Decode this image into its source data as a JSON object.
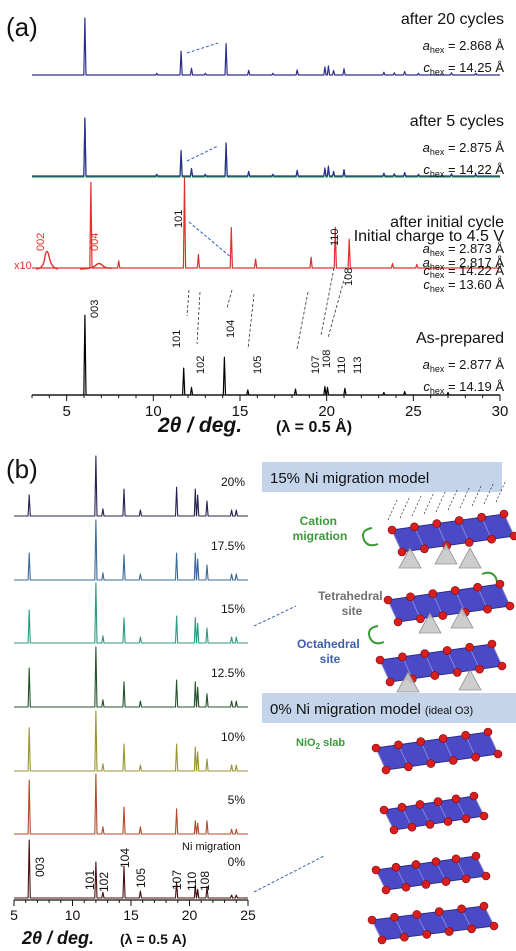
{
  "figure": {
    "panel_a_label": "(a)",
    "panel_b_label": "(b)"
  },
  "colors": {
    "navy": "#2e2e8c",
    "green": "#26a04a",
    "red": "#e0302c",
    "black": "#000000",
    "dark_red": "#4a0f12",
    "slab_blue": "#4a4ac6",
    "atom_red": "#d81e1e",
    "tetra_grey": "#c8c8c8",
    "model_box": "#c4d4ea",
    "accent_green": "#3a9a3a",
    "accent_grey": "#707070",
    "accent_blue": "#3d5fb0"
  },
  "chart_data": [
    {
      "type": "line",
      "panel": "(a)",
      "xlabel": "2θ / deg.",
      "wavelength_note": "(λ = 0.5 Å)",
      "xlim": [
        3,
        30
      ],
      "xticks": [
        5,
        10,
        15,
        20,
        25,
        30
      ],
      "series": [
        {
          "name": "after 20 cycles",
          "color": "#2e2e8c",
          "peaks": [
            [
              6.05,
              1.0
            ],
            [
              10.2,
              0.03
            ],
            [
              11.6,
              0.42
            ],
            [
              12.2,
              0.12
            ],
            [
              13.0,
              0.03
            ],
            [
              14.2,
              0.55
            ],
            [
              15.5,
              0.08
            ],
            [
              16.9,
              0.03
            ],
            [
              18.3,
              0.09
            ],
            [
              19.9,
              0.14
            ],
            [
              20.1,
              0.16
            ],
            [
              20.4,
              0.08
            ],
            [
              21.0,
              0.11
            ],
            [
              23.3,
              0.05
            ],
            [
              23.9,
              0.04
            ],
            [
              24.5,
              0.06
            ],
            [
              25.3,
              0.03
            ],
            [
              27.2,
              0.04
            ],
            [
              28.6,
              0.03
            ]
          ],
          "labels": {
            "a": "a",
            "a_sub": "hex",
            "a_value": " = 2.868 Å",
            "c": "c",
            "c_sub": "hex",
            "c_value": " = 14.25 Å"
          }
        },
        {
          "name": "after 5 cycles",
          "color": "#26a04a",
          "peaks": [
            [
              6.05,
              1.0
            ],
            [
              10.2,
              0.03
            ],
            [
              11.6,
              0.42
            ],
            [
              12.2,
              0.13
            ],
            [
              13.0,
              0.03
            ],
            [
              14.2,
              0.56
            ],
            [
              15.5,
              0.08
            ],
            [
              16.9,
              0.03
            ],
            [
              18.3,
              0.1
            ],
            [
              19.9,
              0.14
            ],
            [
              20.1,
              0.17
            ],
            [
              20.4,
              0.08
            ],
            [
              21.0,
              0.11
            ],
            [
              23.3,
              0.05
            ],
            [
              23.9,
              0.04
            ],
            [
              24.5,
              0.06
            ],
            [
              25.3,
              0.03
            ],
            [
              27.2,
              0.04
            ],
            [
              28.6,
              0.03
            ]
          ],
          "labels": {
            "a": "a",
            "a_sub": "hex",
            "a_value": " = 2.875 Å",
            "c": "c",
            "c_sub": "hex",
            "c_value": " = 14.22 Å"
          }
        },
        {
          "name": "after initial cycle",
          "color": "#2e2e8c",
          "peaks": [
            [
              6.05,
              1.0
            ],
            [
              10.2,
              0.03
            ],
            [
              11.6,
              0.44
            ],
            [
              12.2,
              0.13
            ],
            [
              13.0,
              0.03
            ],
            [
              14.2,
              0.57
            ],
            [
              15.5,
              0.08
            ],
            [
              16.9,
              0.03
            ],
            [
              18.3,
              0.1
            ],
            [
              19.9,
              0.14
            ],
            [
              20.1,
              0.17
            ],
            [
              20.4,
              0.08
            ],
            [
              21.0,
              0.11
            ],
            [
              23.3,
              0.05
            ],
            [
              23.9,
              0.04
            ],
            [
              24.5,
              0.06
            ],
            [
              25.3,
              0.03
            ],
            [
              27.2,
              0.04
            ],
            [
              28.6,
              0.03
            ]
          ],
          "labels": {
            "a": "a",
            "a_sub": "hex",
            "a_value": " = 2.873 Å",
            "c": "c",
            "c_sub": "hex",
            "c_value": " = 14.22 Å"
          }
        },
        {
          "name": "Initial charge to 4.5 V",
          "color": "#e0302c",
          "peaks": [
            [
              6.4,
              0.95
            ],
            [
              8.0,
              0.08
            ],
            [
              11.8,
              1.0
            ],
            [
              12.6,
              0.15
            ],
            [
              14.5,
              0.45
            ],
            [
              15.9,
              0.1
            ],
            [
              19.1,
              0.12
            ],
            [
              20.5,
              0.45
            ],
            [
              21.3,
              0.32
            ],
            [
              23.8,
              0.05
            ],
            [
              25.2,
              0.04
            ]
          ],
          "labels": {
            "a": "a",
            "a_sub": "hex",
            "a_value": " = 2.817 Å",
            "c": "c",
            "c_sub": "hex",
            "c_value": " = 13.60 Å"
          },
          "inset_label": "x10",
          "inset_peaks": [
            "002",
            "004"
          ],
          "peak_labels": [
            "101",
            "110",
            "108"
          ]
        },
        {
          "name": "As-prepared",
          "color": "#000000",
          "peaks": [
            [
              6.05,
              0.95
            ],
            [
              11.75,
              0.32
            ],
            [
              12.2,
              0.09
            ],
            [
              14.1,
              0.45
            ],
            [
              15.45,
              0.06
            ],
            [
              18.2,
              0.07
            ],
            [
              19.9,
              0.1
            ],
            [
              20.05,
              0.09
            ],
            [
              21.05,
              0.08
            ],
            [
              23.3,
              0.03
            ],
            [
              24.5,
              0.04
            ],
            [
              27.0,
              0.03
            ]
          ],
          "labels": {
            "a": "a",
            "a_sub": "hex",
            "a_value": " = 2.877 Å",
            "c": "c",
            "c_sub": "hex",
            "c_value": " = 14.19 Å"
          },
          "peak_labels": [
            "003",
            "101",
            "102",
            "104",
            "105",
            "107",
            "108",
            "110",
            "113"
          ]
        }
      ]
    },
    {
      "type": "line",
      "panel": "(b)",
      "xlabel": "2θ / deg.",
      "wavelength_note": "(λ = 0.5 A)",
      "xlim": [
        5,
        25
      ],
      "xticks": [
        5,
        10,
        15,
        20,
        25
      ],
      "series": [
        {
          "name": "20%",
          "color": "#24234f",
          "peaks": [
            [
              6.3,
              0.35
            ],
            [
              12.0,
              1.0
            ],
            [
              12.6,
              0.12
            ],
            [
              14.4,
              0.45
            ],
            [
              15.8,
              0.1
            ],
            [
              18.9,
              0.48
            ],
            [
              20.5,
              0.45
            ],
            [
              20.7,
              0.35
            ],
            [
              21.5,
              0.25
            ],
            [
              23.6,
              0.1
            ],
            [
              24.0,
              0.1
            ]
          ]
        },
        {
          "name": "17.5%",
          "color": "#3a6a9a",
          "peaks": [
            [
              6.3,
              0.45
            ],
            [
              12.0,
              1.0
            ],
            [
              12.6,
              0.12
            ],
            [
              14.4,
              0.42
            ],
            [
              15.8,
              0.1
            ],
            [
              18.9,
              0.45
            ],
            [
              20.5,
              0.45
            ],
            [
              20.7,
              0.35
            ],
            [
              21.5,
              0.25
            ],
            [
              23.6,
              0.1
            ],
            [
              24.0,
              0.1
            ]
          ]
        },
        {
          "name": "15%",
          "color": "#2c9a80",
          "peaks": [
            [
              6.3,
              0.55
            ],
            [
              12.0,
              1.0
            ],
            [
              12.6,
              0.12
            ],
            [
              14.4,
              0.42
            ],
            [
              15.8,
              0.1
            ],
            [
              18.9,
              0.45
            ],
            [
              20.5,
              0.42
            ],
            [
              20.7,
              0.33
            ],
            [
              21.5,
              0.25
            ],
            [
              23.6,
              0.1
            ],
            [
              24.0,
              0.1
            ]
          ]
        },
        {
          "name": "12.5%",
          "color": "#24522a",
          "peaks": [
            [
              6.3,
              0.65
            ],
            [
              12.0,
              1.0
            ],
            [
              12.6,
              0.12
            ],
            [
              14.4,
              0.42
            ],
            [
              15.8,
              0.1
            ],
            [
              18.9,
              0.45
            ],
            [
              20.5,
              0.42
            ],
            [
              20.7,
              0.33
            ],
            [
              21.5,
              0.22
            ],
            [
              23.6,
              0.1
            ],
            [
              24.0,
              0.1
            ]
          ]
        },
        {
          "name": "10%",
          "color": "#98952e",
          "peaks": [
            [
              6.3,
              0.72
            ],
            [
              12.0,
              1.0
            ],
            [
              12.6,
              0.12
            ],
            [
              14.4,
              0.45
            ],
            [
              15.8,
              0.1
            ],
            [
              18.9,
              0.45
            ],
            [
              20.5,
              0.4
            ],
            [
              20.7,
              0.32
            ],
            [
              21.5,
              0.2
            ],
            [
              23.6,
              0.1
            ],
            [
              24.0,
              0.1
            ]
          ]
        },
        {
          "name": "5%",
          "color": "#b24a2a",
          "peaks": [
            [
              6.3,
              0.9
            ],
            [
              12.0,
              1.0
            ],
            [
              12.6,
              0.12
            ],
            [
              14.4,
              0.45
            ],
            [
              15.8,
              0.12
            ],
            [
              18.9,
              0.42
            ],
            [
              20.5,
              0.22
            ],
            [
              20.7,
              0.18
            ],
            [
              21.5,
              0.22
            ],
            [
              23.6,
              0.08
            ],
            [
              24.0,
              0.08
            ]
          ]
        },
        {
          "name": "0%",
          "color": "#4a0f12",
          "peaks": [
            [
              6.3,
              1.0
            ],
            [
              12.0,
              0.62
            ],
            [
              12.6,
              0.1
            ],
            [
              14.4,
              0.55
            ],
            [
              15.8,
              0.12
            ],
            [
              18.9,
              0.28
            ],
            [
              20.5,
              0.22
            ],
            [
              20.7,
              0.15
            ],
            [
              21.5,
              0.2
            ],
            [
              23.6,
              0.05
            ],
            [
              24.0,
              0.05
            ]
          ]
        }
      ],
      "series_header": "Ni migration",
      "peak_labels": [
        "003",
        "101",
        "102",
        "104",
        "105",
        "107",
        "110",
        "108"
      ]
    }
  ],
  "models": {
    "top_title": "15% Ni migration model",
    "cation_migration": [
      "Cation",
      "migration"
    ],
    "tetrahedral_site": [
      "Tetrahedral",
      "site"
    ],
    "octahedral_site": [
      "Octahedral",
      "site"
    ],
    "bottom_title": "0% Ni migration model",
    "bottom_title_note": "(ideal O3)",
    "nio2_slab": "NiO",
    "nio2_sub": "2",
    "nio2_suffix": " slab"
  }
}
